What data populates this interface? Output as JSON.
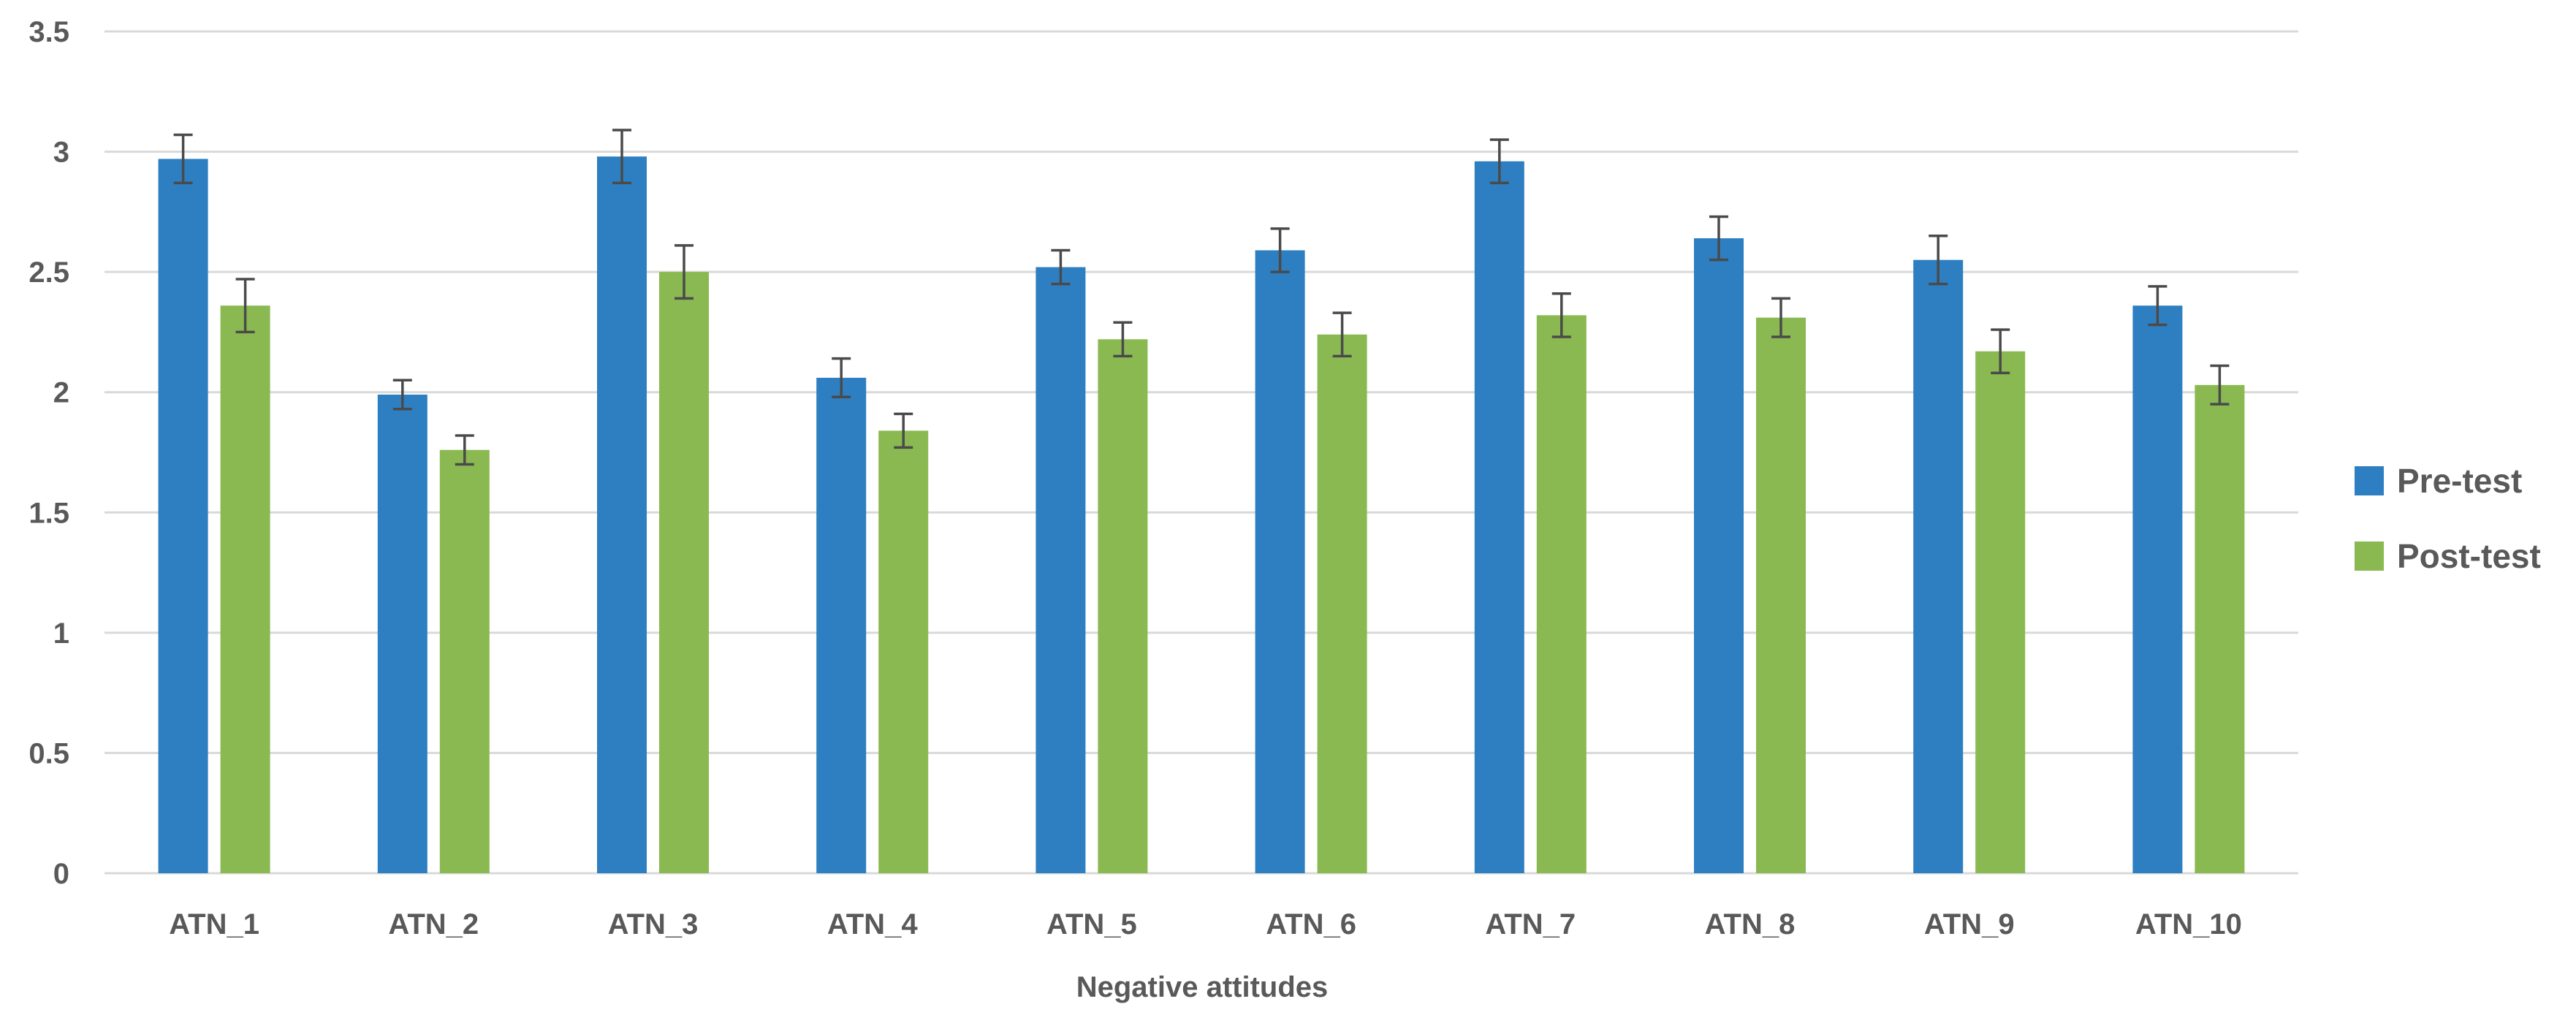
{
  "chart_data": {
    "type": "bar",
    "title": "",
    "xlabel": "Negative attitudes",
    "ylabel": "",
    "ylim": [
      0,
      3.5
    ],
    "yticks": [
      "0",
      "0.5",
      "1",
      "1.5",
      "2",
      "2.5",
      "3",
      "3.5"
    ],
    "grid": true,
    "legend_position": "right",
    "categories": [
      "ATN_1",
      "ATN_2",
      "ATN_3",
      "ATN_4",
      "ATN_5",
      "ATN_6",
      "ATN_7",
      "ATN_8",
      "ATN_9",
      "ATN_10"
    ],
    "series": [
      {
        "name": "Pre-test",
        "color": "#2e7fc1",
        "values": [
          2.97,
          1.99,
          2.98,
          2.06,
          2.52,
          2.59,
          2.96,
          2.64,
          2.55,
          2.36
        ],
        "error": [
          0.1,
          0.06,
          0.11,
          0.08,
          0.07,
          0.09,
          0.09,
          0.09,
          0.1,
          0.08
        ]
      },
      {
        "name": "Post-test",
        "color": "#8ab952",
        "values": [
          2.36,
          1.76,
          2.5,
          1.84,
          2.22,
          2.24,
          2.32,
          2.31,
          2.17,
          2.03
        ],
        "error": [
          0.11,
          0.06,
          0.11,
          0.07,
          0.07,
          0.09,
          0.09,
          0.08,
          0.09,
          0.08
        ]
      }
    ]
  }
}
